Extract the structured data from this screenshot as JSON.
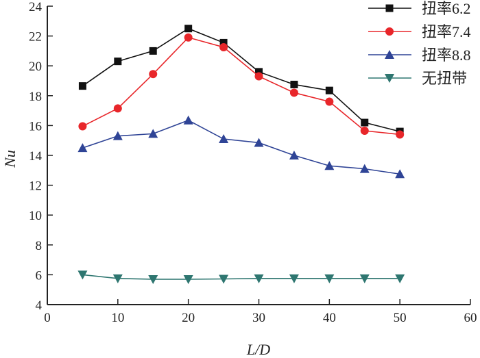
{
  "chart_data": {
    "type": "line",
    "xlabel": "L/D",
    "ylabel": "Nu",
    "xlim": [
      0,
      60
    ],
    "ylim": [
      4,
      24
    ],
    "xticks": [
      0,
      10,
      20,
      30,
      40,
      50,
      60
    ],
    "yticks": [
      4,
      6,
      8,
      10,
      12,
      14,
      16,
      18,
      20,
      22,
      24
    ],
    "grid": false,
    "legend_position": "top-right",
    "x": [
      5,
      10,
      15,
      20,
      25,
      30,
      35,
      40,
      45,
      50
    ],
    "series": [
      {
        "name": "扭率6.2",
        "color": "#111111",
        "marker": "square",
        "values": [
          18.65,
          20.3,
          21.0,
          22.5,
          21.55,
          19.6,
          18.75,
          18.35,
          16.2,
          15.6
        ]
      },
      {
        "name": "扭率7.4",
        "color": "#e8262a",
        "marker": "circle",
        "values": [
          15.95,
          17.15,
          19.45,
          21.9,
          21.25,
          19.3,
          18.2,
          17.6,
          15.65,
          15.4
        ]
      },
      {
        "name": "扭率8.8",
        "color": "#2f4496",
        "marker": "triangle-up",
        "values": [
          14.5,
          15.3,
          15.45,
          16.35,
          15.1,
          14.85,
          14.0,
          13.3,
          13.1,
          12.75
        ]
      },
      {
        "name": "无扭带",
        "color": "#2e7670",
        "marker": "triangle-down",
        "values": [
          6.0,
          5.75,
          5.7,
          5.7,
          5.72,
          5.75,
          5.75,
          5.75,
          5.75,
          5.75
        ]
      }
    ]
  }
}
